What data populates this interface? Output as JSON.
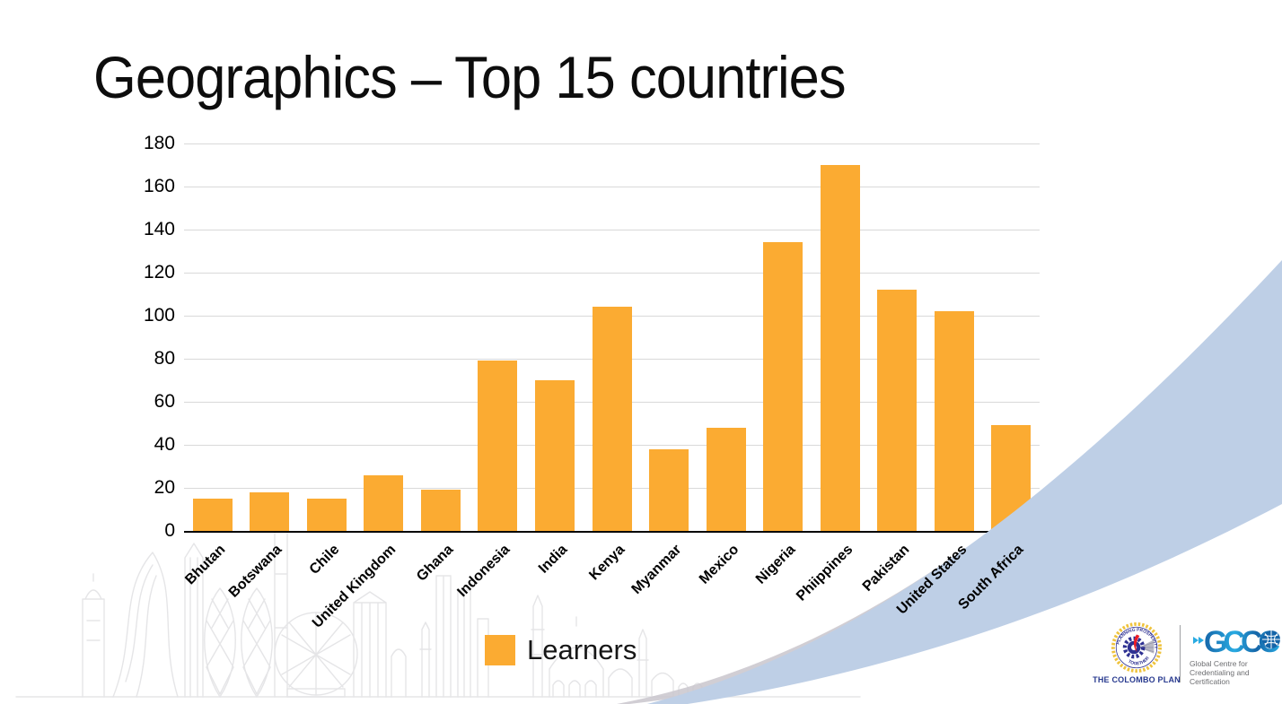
{
  "slide": {
    "title": "Geographics – Top 15 countries",
    "background_color": "#FFFFFF"
  },
  "chart_data": {
    "type": "bar",
    "title": "Geographics – Top 15 countries",
    "categories": [
      "Bhutan",
      "Botswana",
      "Chile",
      "United Kingdom",
      "Ghana",
      "Indonesia",
      "India",
      "Kenya",
      "Myanmar",
      "Mexico",
      "Nigeria",
      "Phiippines",
      "Pakistan",
      "United States",
      "South Africa"
    ],
    "series": [
      {
        "name": "Learners",
        "values": [
          15,
          18,
          15,
          26,
          19,
          79,
          70,
          104,
          38,
          48,
          134,
          170,
          112,
          102,
          49
        ]
      }
    ],
    "xlabel": "",
    "ylabel": "",
    "ylim": [
      0,
      180
    ],
    "yticks": [
      0,
      20,
      40,
      60,
      80,
      100,
      120,
      140,
      160,
      180
    ],
    "grid": true,
    "gridline_color": "#D9D9D9",
    "axis_color": "#000000",
    "bar_color": "#FBAB32",
    "legend": {
      "label": "Learners",
      "position": "bottom",
      "swatch_color": "#FBAB32"
    }
  },
  "footer": {
    "colombo_plan": {
      "motto_top": "PLANNING PROSPERITY",
      "motto_bottom": "TOGETHER",
      "name": "THE COLOMBO PLAN",
      "name_color": "#283A8F"
    },
    "gccc": {
      "acronym": "GCCC",
      "line1": "Global Centre for",
      "line2": "Credentialing and Certification",
      "accent_color": "#29ABE2",
      "primary_color": "#1565A8"
    }
  },
  "decor": {
    "swoosh_blue": "#BECFE6",
    "swoosh_gray": "#C9C5CC",
    "skyline_color": "#E5E5E7"
  }
}
